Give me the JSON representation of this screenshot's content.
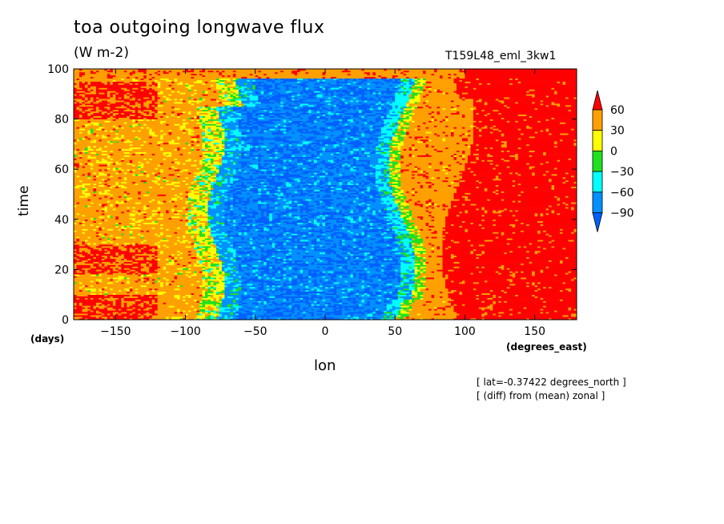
{
  "chart_data": {
    "type": "heatmap",
    "title": "toa outgoing longwave flux",
    "units": "(W m-2)",
    "run_name": "T159L48_eml_3kw1",
    "xlabel": "lon",
    "ylabel": "time",
    "x_unit": "(degrees_east)",
    "y_unit": "(days)",
    "xlim": [
      -180,
      180
    ],
    "ylim": [
      0,
      100
    ],
    "x_ticks": [
      "-150",
      "-100",
      "-50",
      "0",
      "50",
      "100",
      "150"
    ],
    "y_ticks": [
      "0",
      "20",
      "40",
      "60",
      "80",
      "100"
    ],
    "notes": [
      "[ lat=-0.37422 degrees_north ]",
      "[ (diff) from (mean) zonal ]"
    ],
    "colorbar": {
      "levels": [
        "60",
        "30",
        "0",
        "-30",
        "-60",
        "-90"
      ],
      "colors": [
        "#ff0000",
        "#ffa000",
        "#ffff00",
        "#20e020",
        "#00ffff",
        "#0090ff",
        "#0060ff"
      ]
    },
    "regions_by_longitude": [
      {
        "lon_range": [
          -180,
          -80
        ],
        "dominant_bin": "0 to 30 / 30 to 60",
        "description_color": "#ffa000"
      },
      {
        "lon_range": [
          -80,
          60
        ],
        "dominant_bin": "-90 to -60",
        "description_color": "#0090ff"
      },
      {
        "lon_range": [
          60,
          95
        ],
        "dominant_bin": "0 to 30 / 30 to 60",
        "description_color": "#ffa000"
      },
      {
        "lon_range": [
          95,
          180
        ],
        "dominant_bin": ">60",
        "description_color": "#ff0000"
      }
    ]
  }
}
